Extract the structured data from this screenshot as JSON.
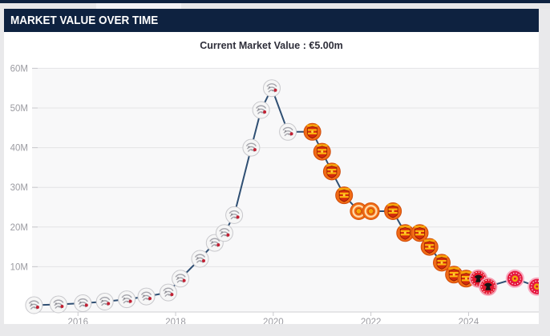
{
  "page": {
    "header_title": "MARKET VALUE OVER TIME",
    "subtitle": "Current Market Value : €5.00m"
  },
  "colors": {
    "header_bg": "#0e2240",
    "line": "#2f4f73",
    "page_bg": "#e9e9eb",
    "plot_bg": "#f8f8f9",
    "grid": "#e3e3e6",
    "axis_text": "#9b9ba1",
    "badge_silver": "#f6f6f6",
    "badge_orange": "#f16b15",
    "badge_red": "#e31930",
    "badge_crimson": "#e5173f"
  },
  "chart_data": {
    "type": "line",
    "title": "Market value over time",
    "subtitle": "Current Market Value : €5.00m",
    "x": [
      2015.1,
      2015.6,
      2016.1,
      2016.55,
      2017.0,
      2017.4,
      2017.85,
      2018.1,
      2018.5,
      2018.8,
      2019.0,
      2019.2,
      2019.55,
      2019.75,
      2019.97,
      2020.3,
      2020.8,
      2021.0,
      2021.2,
      2021.45,
      2021.75,
      2022.0,
      2022.45,
      2022.7,
      2023.0,
      2023.2,
      2023.45,
      2023.7,
      2023.95,
      2024.2,
      2024.4,
      2024.95,
      2025.4
    ],
    "values_millions_eur": [
      0.3,
      0.5,
      0.8,
      1.2,
      1.8,
      2.5,
      3.5,
      7,
      12,
      16,
      18.5,
      23,
      40,
      49.5,
      55,
      44,
      44,
      39,
      34,
      28,
      24,
      24,
      24,
      18.5,
      18.5,
      15,
      11,
      8,
      7,
      7,
      5,
      7,
      5
    ],
    "point_badges": [
      "silver-crest",
      "silver-crest",
      "silver-crest",
      "silver-crest",
      "silver-crest",
      "silver-crest",
      "silver-crest",
      "silver-crest",
      "silver-crest",
      "silver-crest",
      "silver-crest",
      "silver-crest",
      "silver-crest",
      "silver-crest",
      "silver-crest",
      "silver-crest",
      "orange-shield",
      "orange-shield",
      "orange-shield",
      "orange-shield",
      "orange-ring",
      "orange-ring",
      "orange-shield",
      "orange-shield",
      "orange-shield",
      "orange-shield",
      "orange-shield",
      "orange-shield",
      "orange-shield",
      "red-eagle",
      "red-eagle",
      "crimson-ring",
      "crimson-ring"
    ],
    "peak_value_millions": 55,
    "current_value_label": "€5.00m",
    "xticks": [
      2016,
      2018,
      2020,
      2022,
      2024
    ],
    "xtick_labels": [
      "2016",
      "2018",
      "2020",
      "2022",
      "2024"
    ],
    "yticks": [
      10,
      20,
      30,
      40,
      50,
      60
    ],
    "ytick_labels": [
      "10M",
      "20M",
      "30M",
      "40M",
      "50M",
      "60M"
    ],
    "xlim": [
      2015.06,
      2025.44
    ],
    "ylim": [
      0,
      62
    ],
    "grid": true,
    "legend": false
  }
}
